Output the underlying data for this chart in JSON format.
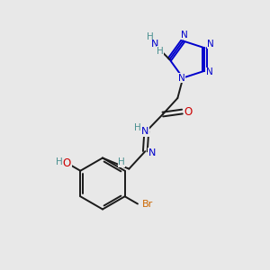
{
  "bg_color": "#e8e8e8",
  "bond_color": "#1a1a1a",
  "N_color": "#0000cc",
  "O_color": "#cc0000",
  "Br_color": "#cc6600",
  "H_color": "#4a9090",
  "figsize": [
    3.0,
    3.0
  ],
  "dpi": 100,
  "xlim": [
    0,
    10
  ],
  "ylim": [
    0,
    10
  ]
}
